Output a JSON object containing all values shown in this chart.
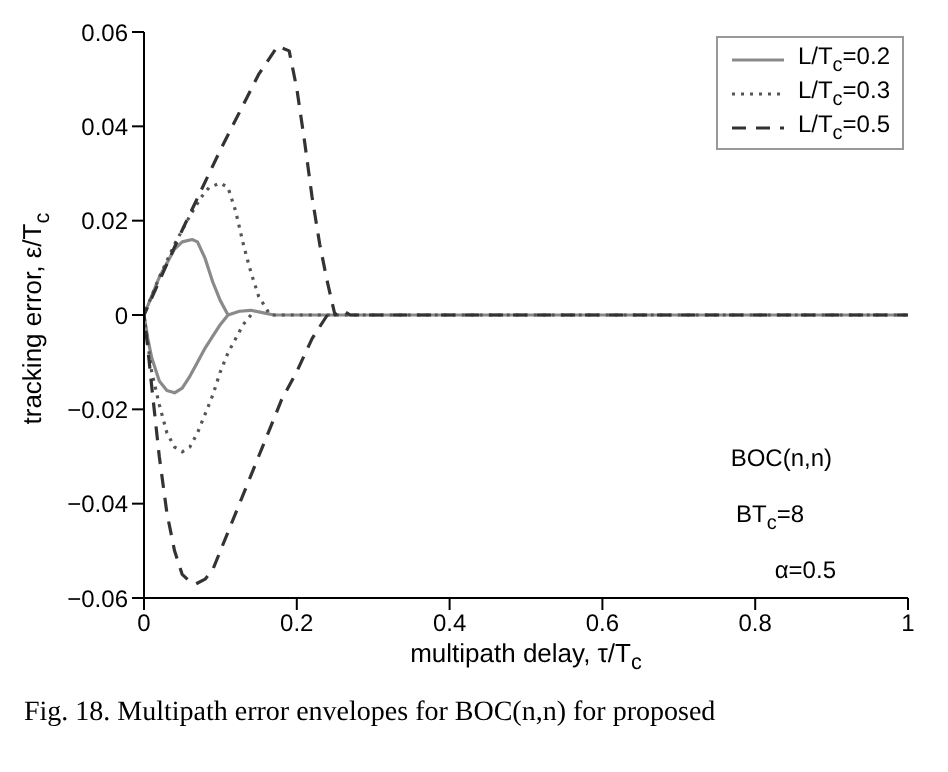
{
  "chart_data": {
    "type": "line",
    "xlabel": "multipath delay, τ/T$_{c}$",
    "ylabel": "tracking error, ε/T$_{c}$",
    "xlim": [
      0,
      1
    ],
    "xticks": [
      0,
      0.2,
      0.4,
      0.6,
      0.8,
      1
    ],
    "ylim": [
      -0.06,
      0.06
    ],
    "yticks": [
      {
        "value": -0.06,
        "label": "−0.06"
      },
      {
        "value": -0.04,
        "label": "−0.04"
      },
      {
        "value": -0.02,
        "label": "−0.02"
      },
      0,
      0.02,
      0.04,
      0.06
    ],
    "grid": false,
    "legend": "top right",
    "marker": "none",
    "series": [
      {
        "name": "L/T$_{c}$=0.2",
        "color": "#8a8a8a",
        "line_style": "solid",
        "x": [
          0.11,
          0.1,
          0.09,
          0.08,
          0.07,
          0.06,
          0.05,
          0.04,
          0.03,
          0.02,
          0.01,
          0.005,
          0,
          0.02,
          0.03,
          0.04,
          0.05,
          0.063,
          0.07,
          0.08,
          0.09,
          0.1,
          0.11,
          0.125,
          0.14,
          0.155,
          0.17,
          0.3,
          0.6,
          1
        ],
        "values": [
          0,
          -0.002,
          -0.0045,
          -0.007,
          -0.01,
          -0.013,
          -0.0155,
          -0.0165,
          -0.016,
          -0.014,
          -0.009,
          -0.005,
          0,
          0.008,
          0.011,
          0.014,
          0.0155,
          0.016,
          0.0155,
          0.012,
          0.007,
          0.003,
          0,
          0.0008,
          0.001,
          0.0005,
          0,
          0,
          0,
          0
        ]
      },
      {
        "name": "L/T$_{c}$=0.3",
        "color": "#555555",
        "line_style": "dotted",
        "x": [
          0.14,
          0.13,
          0.12,
          0.11,
          0.1,
          0.09,
          0.08,
          0.07,
          0.06,
          0.05,
          0.04,
          0.03,
          0.02,
          0.01,
          0.005,
          0,
          0.02,
          0.04,
          0.06,
          0.075,
          0.085,
          0.1,
          0.11,
          0.12,
          0.13,
          0.14,
          0.15,
          0.165,
          0.3,
          1
        ],
        "values": [
          0,
          -0.002,
          -0.005,
          -0.008,
          -0.012,
          -0.017,
          -0.021,
          -0.025,
          -0.028,
          -0.029,
          -0.028,
          -0.025,
          -0.019,
          -0.012,
          -0.006,
          0,
          0.008,
          0.015,
          0.021,
          0.025,
          0.027,
          0.028,
          0.027,
          0.022,
          0.015,
          0.009,
          0.004,
          0,
          0,
          0
        ]
      },
      {
        "name": "L/T$_{c}$=0.5",
        "color": "#333333",
        "line_style": "dashed",
        "x": [
          0.24,
          0.22,
          0.2,
          0.18,
          0.16,
          0.14,
          0.12,
          0.1,
          0.09,
          0.08,
          0.068,
          0.06,
          0.05,
          0.04,
          0.03,
          0.02,
          0.01,
          0.005,
          0,
          0.05,
          0.1,
          0.15,
          0.175,
          0.19,
          0.2,
          0.21,
          0.22,
          0.23,
          0.24,
          0.25,
          0.26,
          0.27,
          0.3,
          1
        ],
        "values": [
          0,
          -0.005,
          -0.012,
          -0.018,
          -0.026,
          -0.034,
          -0.042,
          -0.05,
          -0.054,
          -0.056,
          -0.057,
          -0.0565,
          -0.055,
          -0.05,
          -0.042,
          -0.03,
          -0.015,
          -0.007,
          0,
          0.018,
          0.035,
          0.051,
          0.057,
          0.056,
          0.048,
          0.037,
          0.025,
          0.015,
          0.007,
          0,
          0.001,
          0,
          0,
          0
        ]
      }
    ],
    "annotations": [
      "BOC(n,n)",
      "BT$_{c}$=8",
      "α=0.5",
      "Fig. 18.  Multipath error envelopes for BOC(n,n) for proposed"
    ]
  }
}
